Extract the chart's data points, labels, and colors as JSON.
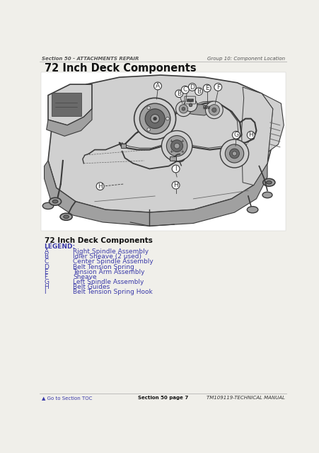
{
  "bg_color": "#f0efea",
  "diagram_bg": "#ffffff",
  "header_left": "Section 50 - ATTACHMENTS REPAIR",
  "header_right": "Group 10: Component Location",
  "title": "72 Inch Deck Components",
  "legend_title": "72 Inch Deck Components",
  "legend_label": "LEGEND:",
  "legend_color": "#3a3aaa",
  "text_color": "#222222",
  "line_color": "#444444",
  "legend_items": [
    [
      "A",
      "Right Spindle Assembly"
    ],
    [
      "B",
      "Idler Sheave (2 used)"
    ],
    [
      "C",
      "Center Spindle Assembly"
    ],
    [
      "D",
      "Belt Tension Spring"
    ],
    [
      "E",
      "Tension Arm Assembly"
    ],
    [
      "F",
      "Sheave"
    ],
    [
      "G",
      "Left Spindle Assembly"
    ],
    [
      "H",
      "Belt Guides"
    ],
    [
      "I",
      "Belt Tension Spring Hook"
    ]
  ],
  "footer_left": "▲ Go to Section TOC",
  "footer_center": "Section 50 page 7",
  "footer_right": "TM109119-TECHNICAL MANUAL",
  "header_fontsize": 5.0,
  "title_fontsize": 10.5,
  "legend_title_fontsize": 7.5,
  "legend_fontsize": 6.5,
  "footer_fontsize": 5.0,
  "callout_fontsize": 6.5
}
